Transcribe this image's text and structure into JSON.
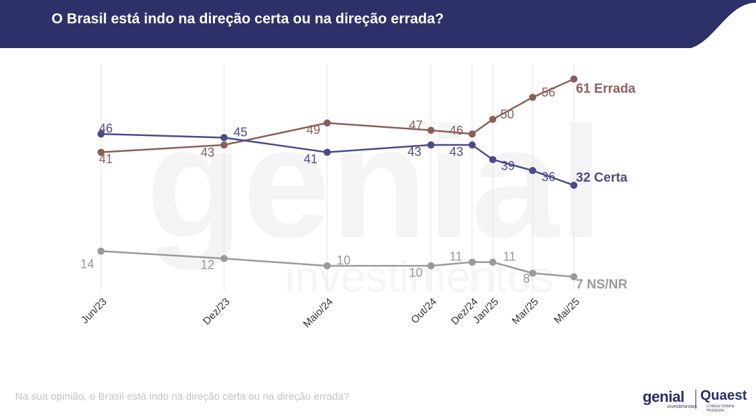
{
  "header": {
    "title": "O Brasil está indo na direção certa ou na direção errada?"
  },
  "chart_data": {
    "type": "line",
    "title": "O Brasil está indo na direção certa ou na direção errada?",
    "x": [
      "Jun/23",
      "Dez/23",
      "Maio/24",
      "Out/24",
      "Dez/24",
      "Jan/25",
      "Mar/25",
      "Mai/25"
    ],
    "series": [
      {
        "name": "Errada",
        "values": [
          41,
          43,
          49,
          47,
          46,
          50,
          56,
          61
        ],
        "color": "#8c5e58"
      },
      {
        "name": "Certa",
        "values": [
          46,
          45,
          41,
          43,
          43,
          39,
          36,
          32
        ],
        "color": "#4a4b8c"
      },
      {
        "name": "NS/NR",
        "values": [
          14,
          12,
          10,
          10,
          11,
          11,
          8,
          7
        ],
        "color": "#9a9a9a"
      }
    ],
    "end_labels": [
      "61 Errada",
      "32 Certa",
      "7 NS/NR"
    ],
    "grid": true,
    "legend": "end-of-line labels"
  },
  "watermark": {
    "main": "genial",
    "sub": "investimentos"
  },
  "footer": {
    "caption": "Na sua opinião, o Brasil está indo na direção certa ou na direção errada?"
  },
  "logos": {
    "genial": "genial",
    "genial_sub": "investimentos",
    "quaest": "Quaest",
    "quaest_sub": "CONSULTORIA & PESQUISA"
  },
  "colors": {
    "header": "#2e3169",
    "errada": "#8c5e58",
    "certa": "#4a4b8c",
    "nsnr": "#9a9a9a"
  }
}
